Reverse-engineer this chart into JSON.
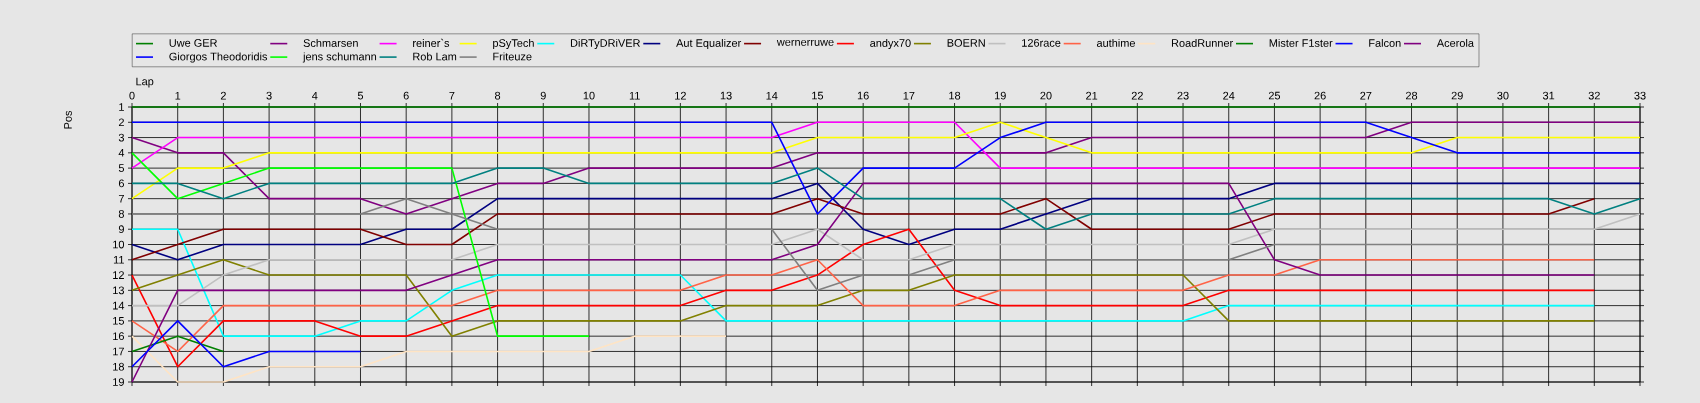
{
  "chart_data": {
    "type": "line",
    "xlabel": "Lap",
    "ylabel": "Pos",
    "x": [
      0,
      1,
      2,
      3,
      4,
      5,
      6,
      7,
      8,
      9,
      10,
      11,
      12,
      13,
      14,
      15,
      16,
      17,
      18,
      19,
      20,
      21,
      22,
      23,
      24,
      25,
      26,
      27,
      28,
      29,
      30,
      31,
      32,
      33
    ],
    "xlim": [
      0,
      33
    ],
    "xticks": [
      0,
      1,
      2,
      3,
      4,
      5,
      6,
      7,
      8,
      9,
      10,
      11,
      12,
      13,
      14,
      15,
      16,
      17,
      18,
      19,
      20,
      21,
      22,
      23,
      24,
      25,
      26,
      27,
      28,
      29,
      30,
      31,
      32,
      33
    ],
    "ylim": [
      19,
      1
    ],
    "yticks": [
      1,
      2,
      3,
      4,
      5,
      6,
      7,
      8,
      9,
      10,
      11,
      12,
      13,
      14,
      15,
      16,
      17,
      18,
      19
    ],
    "grid": true,
    "legend": "top",
    "marker": "none",
    "line_style": "solid",
    "series": [
      {
        "name": "Uwe GER",
        "color": "#008000",
        "values": [
          1,
          1,
          1,
          1,
          1,
          1,
          1,
          1,
          1,
          1,
          1,
          1,
          1,
          1,
          1,
          1,
          1,
          1,
          1,
          1,
          1,
          1,
          1,
          1,
          1,
          1,
          1,
          1,
          1,
          1,
          1,
          1,
          1,
          1
        ]
      },
      {
        "name": "Schmarsen",
        "color": "#800080",
        "values": [
          3,
          4,
          4,
          7,
          7,
          7,
          8,
          7,
          6,
          6,
          5,
          5,
          5,
          5,
          5,
          4,
          4,
          4,
          4,
          4,
          4,
          3,
          3,
          3,
          3,
          3,
          3,
          3,
          2,
          2,
          2,
          2,
          2,
          2
        ]
      },
      {
        "name": "reiner`s",
        "color": "#ff00ff",
        "values": [
          5,
          3,
          3,
          3,
          3,
          3,
          3,
          3,
          3,
          3,
          3,
          3,
          3,
          3,
          3,
          2,
          2,
          2,
          2,
          5,
          5,
          5,
          5,
          5,
          5,
          5,
          5,
          5,
          5,
          5,
          5,
          5,
          5,
          5
        ]
      },
      {
        "name": "pSyTech",
        "color": "#ffff00",
        "values": [
          7,
          5,
          5,
          4,
          4,
          4,
          4,
          4,
          4,
          4,
          4,
          4,
          4,
          4,
          4,
          3,
          3,
          3,
          3,
          2,
          3,
          4,
          4,
          4,
          4,
          4,
          4,
          4,
          4,
          3,
          3,
          3,
          3,
          3
        ]
      },
      {
        "name": "DiRTyDRiVER",
        "color": "#00ffff",
        "values": [
          9,
          9,
          16,
          16,
          16,
          15,
          15,
          13,
          12,
          12,
          12,
          12,
          12,
          15,
          15,
          15,
          15,
          15,
          15,
          15,
          15,
          15,
          15,
          15,
          14,
          14,
          14,
          14,
          14,
          14,
          14,
          14,
          14,
          null
        ]
      },
      {
        "name": "Aut Equalizer",
        "color": "#000080",
        "values": [
          10,
          11,
          10,
          10,
          10,
          10,
          9,
          9,
          7,
          7,
          7,
          7,
          7,
          7,
          7,
          6,
          9,
          10,
          9,
          9,
          8,
          7,
          7,
          7,
          7,
          6,
          6,
          6,
          6,
          6,
          6,
          6,
          6,
          6
        ]
      },
      {
        "name": "wernerruwe",
        "color": "#800000",
        "values": [
          11,
          10,
          9,
          9,
          9,
          9,
          10,
          10,
          8,
          8,
          8,
          8,
          8,
          8,
          8,
          7,
          8,
          8,
          8,
          8,
          7,
          9,
          9,
          9,
          9,
          8,
          8,
          8,
          8,
          8,
          8,
          8,
          7,
          null
        ]
      },
      {
        "name": "andyx70",
        "color": "#ff0000",
        "values": [
          12,
          18,
          15,
          15,
          15,
          16,
          16,
          15,
          14,
          14,
          14,
          14,
          14,
          13,
          13,
          12,
          10,
          9,
          13,
          14,
          14,
          14,
          14,
          14,
          13,
          13,
          13,
          13,
          13,
          13,
          13,
          13,
          13,
          null
        ]
      },
      {
        "name": "BOERN",
        "color": "#808000",
        "values": [
          13,
          12,
          11,
          12,
          12,
          12,
          12,
          16,
          15,
          15,
          15,
          15,
          15,
          14,
          14,
          14,
          13,
          13,
          12,
          12,
          12,
          12,
          12,
          12,
          15,
          15,
          15,
          15,
          15,
          15,
          15,
          15,
          15,
          null
        ]
      },
      {
        "name": "126race",
        "color": "#c0c0c0",
        "values": [
          14,
          14,
          12,
          11,
          11,
          11,
          11,
          11,
          10,
          10,
          10,
          10,
          10,
          10,
          10,
          9,
          11,
          11,
          10,
          10,
          10,
          10,
          10,
          10,
          10,
          9,
          9,
          9,
          9,
          9,
          9,
          9,
          9,
          8
        ]
      },
      {
        "name": "authime",
        "color": "#ff6347",
        "values": [
          15,
          17,
          14,
          14,
          14,
          14,
          14,
          14,
          13,
          13,
          13,
          13,
          13,
          12,
          12,
          11,
          14,
          14,
          14,
          13,
          13,
          13,
          13,
          13,
          12,
          12,
          11,
          11,
          11,
          11,
          11,
          11,
          11,
          null
        ]
      },
      {
        "name": "RoadRunner",
        "color": "#ffe4c4",
        "values": [
          16,
          19,
          19,
          18,
          18,
          18,
          17,
          17,
          17,
          17,
          17,
          16,
          16,
          16,
          null,
          null,
          null,
          null,
          null,
          null,
          null,
          null,
          null,
          null,
          null,
          null,
          null,
          null,
          null,
          null,
          null,
          null,
          null,
          null
        ]
      },
      {
        "name": "Mister F1ster",
        "color": "#008000",
        "values": [
          17,
          16,
          17,
          null,
          null,
          null,
          null,
          null,
          null,
          null,
          null,
          null,
          null,
          null,
          null,
          null,
          null,
          null,
          null,
          null,
          null,
          null,
          null,
          null,
          null,
          null,
          null,
          null,
          null,
          null,
          null,
          null,
          null,
          null
        ]
      },
      {
        "name": "Falcon",
        "color": "#0000ff",
        "values": [
          2,
          2,
          2,
          2,
          2,
          2,
          2,
          2,
          2,
          2,
          2,
          2,
          2,
          2,
          2,
          8,
          5,
          5,
          5,
          3,
          2,
          2,
          2,
          2,
          2,
          2,
          2,
          2,
          3,
          4,
          4,
          4,
          4,
          4
        ]
      },
      {
        "name": "Acerola",
        "color": "#800080",
        "values": [
          19,
          13,
          13,
          13,
          13,
          13,
          13,
          12,
          11,
          11,
          11,
          11,
          11,
          11,
          11,
          10,
          6,
          6,
          6,
          6,
          6,
          6,
          6,
          6,
          6,
          11,
          12,
          12,
          12,
          12,
          12,
          12,
          12,
          null
        ]
      },
      {
        "name": "Giorgos Theodoridis",
        "color": "#0000ff",
        "values": [
          18,
          15,
          18,
          17,
          17,
          17,
          null,
          null,
          null,
          null,
          null,
          null,
          null,
          null,
          null,
          null,
          null,
          null,
          null,
          null,
          null,
          null,
          null,
          null,
          null,
          null,
          null,
          null,
          null,
          null,
          null,
          null,
          null,
          null
        ]
      },
      {
        "name": "jens  schumann",
        "color": "#00ff00",
        "values": [
          4,
          7,
          6,
          5,
          5,
          5,
          5,
          5,
          16,
          16,
          16,
          null,
          null,
          null,
          null,
          null,
          null,
          null,
          null,
          null,
          null,
          null,
          null,
          null,
          null,
          null,
          null,
          null,
          null,
          null,
          null,
          null,
          null,
          null
        ]
      },
      {
        "name": "Rob Lam",
        "color": "#008080",
        "values": [
          6,
          6,
          7,
          6,
          6,
          6,
          6,
          6,
          5,
          5,
          6,
          6,
          6,
          6,
          6,
          5,
          7,
          7,
          7,
          7,
          9,
          8,
          8,
          8,
          8,
          7,
          7,
          7,
          7,
          7,
          7,
          7,
          8,
          7
        ]
      },
      {
        "name": "Friteuze",
        "color": "#808080",
        "values": [
          8,
          8,
          8,
          8,
          8,
          8,
          7,
          8,
          9,
          9,
          9,
          9,
          9,
          9,
          9,
          13,
          12,
          12,
          11,
          11,
          11,
          11,
          11,
          11,
          11,
          10,
          10,
          10,
          10,
          10,
          10,
          10,
          10,
          null
        ]
      }
    ]
  }
}
